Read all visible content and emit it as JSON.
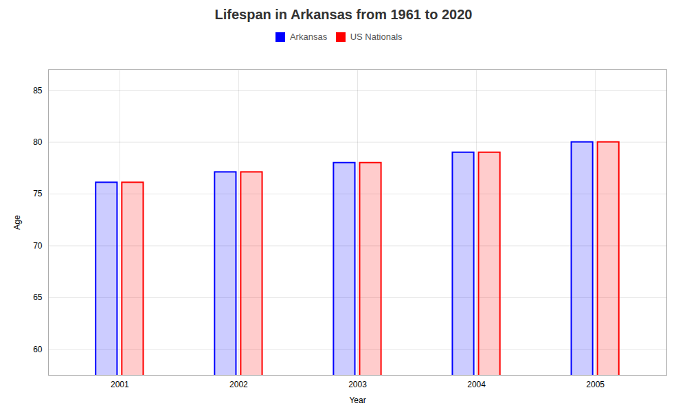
{
  "chart_data": {
    "type": "bar",
    "title": "Lifespan in Arkansas from 1961 to 2020",
    "xlabel": "Year",
    "ylabel": "Age",
    "categories": [
      "2001",
      "2002",
      "2003",
      "2004",
      "2005"
    ],
    "series": [
      {
        "name": "Arkansas",
        "color": "#0000ff",
        "values": [
          76.1,
          77.1,
          78.0,
          79.0,
          80.0
        ]
      },
      {
        "name": "US Nationals",
        "color": "#ff0000",
        "values": [
          76.1,
          77.1,
          78.0,
          79.0,
          80.0
        ]
      }
    ],
    "ylim": [
      57.5,
      87
    ],
    "yticks": [
      60,
      65,
      70,
      75,
      80,
      85
    ],
    "grid": true,
    "legend": "top"
  }
}
